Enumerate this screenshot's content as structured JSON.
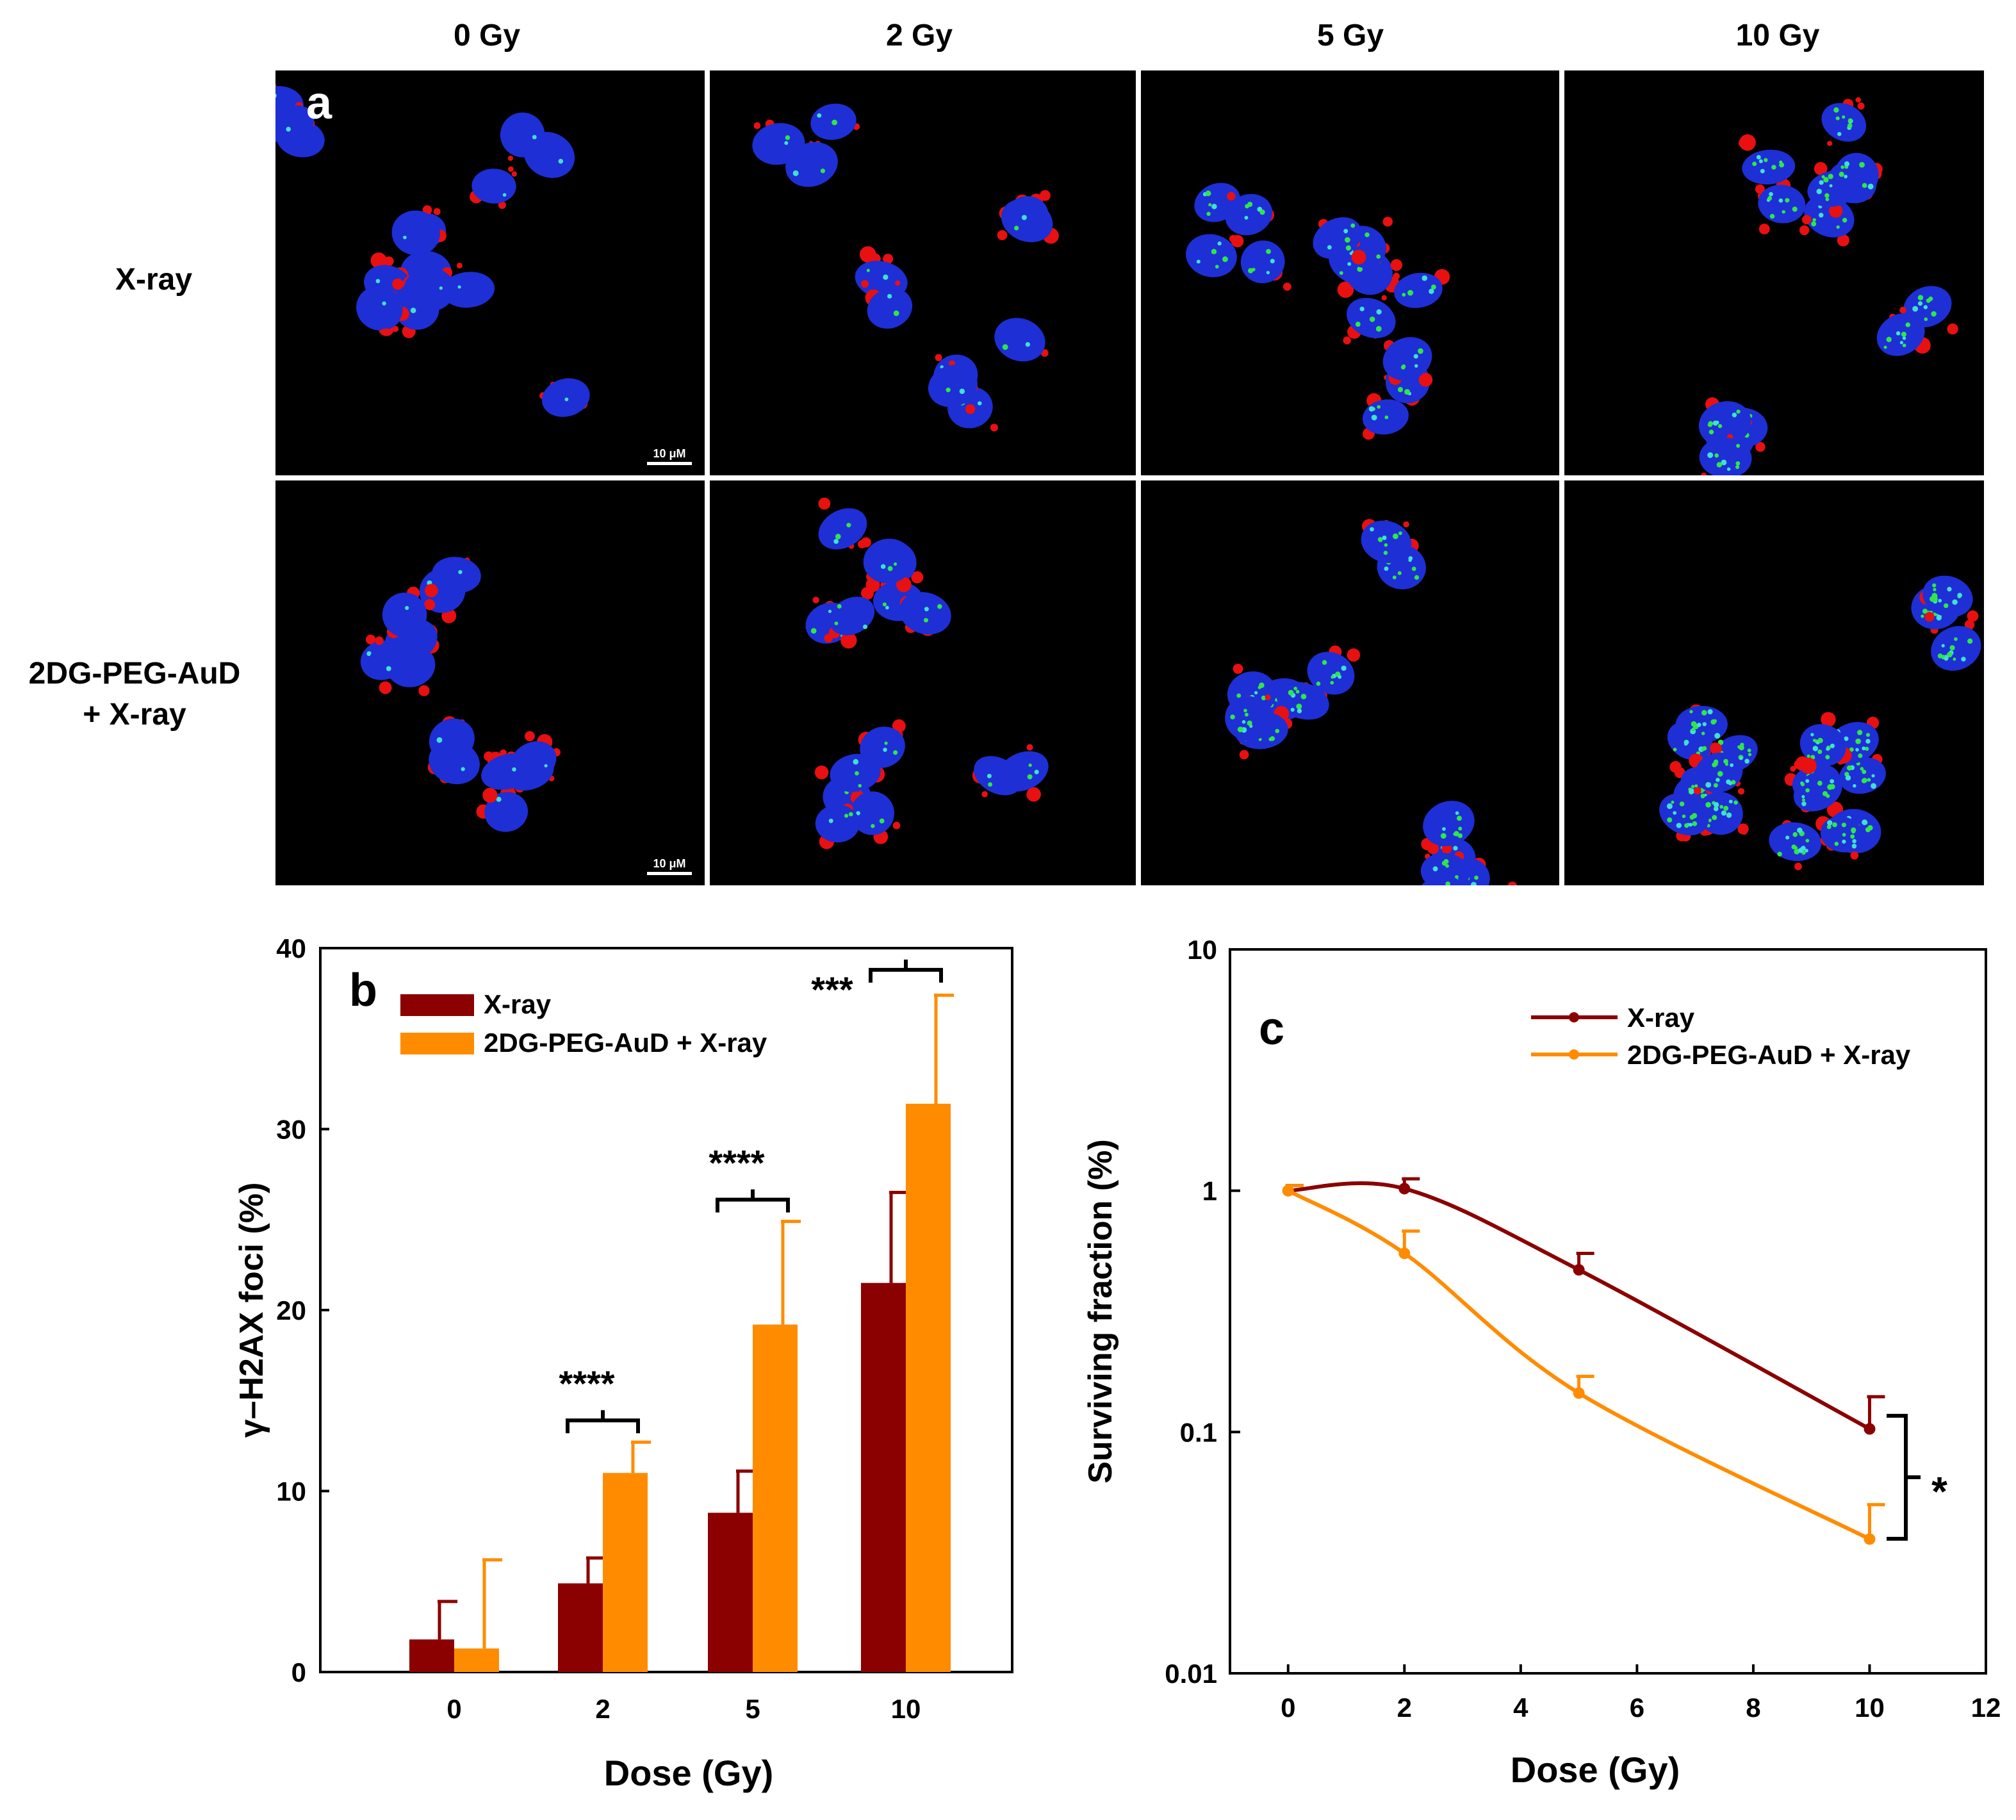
{
  "panel_a": {
    "letter": "a",
    "columns": [
      "0 Gy",
      "2 Gy",
      "5 Gy",
      "10 Gy"
    ],
    "rows": [
      {
        "line1": "X-ray",
        "line2": ""
      },
      {
        "line1": "2DG-PEG-AuD",
        "line2": "+ X-ray"
      }
    ],
    "scale_bar": "10 μM"
  },
  "colors": {
    "xray": "#8b0000",
    "combo": "#ff8c00",
    "nucleus": "#1e2fd6",
    "stain": "#e81010",
    "foci": "#2ee64a"
  },
  "chart_data": [
    {
      "id": "b",
      "type": "bar",
      "letter": "b",
      "categories": [
        "0",
        "2",
        "5",
        "10"
      ],
      "series": [
        {
          "name": "X-ray",
          "values": [
            1.8,
            4.9,
            8.8,
            21.5
          ],
          "errors": [
            2.1,
            1.4,
            2.3,
            5.0
          ]
        },
        {
          "name": "2DG-PEG-AuD + X-ray",
          "values": [
            1.3,
            11.0,
            19.2,
            31.4
          ],
          "errors": [
            4.9,
            1.7,
            5.7,
            6.0
          ]
        }
      ],
      "xlabel": "Dose (Gy)",
      "ylabel": "γ–H2AX foci (%)",
      "ylim": [
        0,
        40
      ],
      "yticks": [
        0,
        10,
        20,
        30,
        40
      ],
      "legend": "top-left",
      "significance": [
        "",
        "****",
        "****",
        "***"
      ]
    },
    {
      "id": "c",
      "type": "line",
      "letter": "c",
      "yscale": "log",
      "series": [
        {
          "name": "X-ray",
          "x": [
            0,
            2,
            5,
            10
          ],
          "y": [
            1.0,
            1.02,
            0.47,
            0.103
          ],
          "yerr_upper": [
            1.05,
            1.12,
            0.55,
            0.14
          ]
        },
        {
          "name": "2DG-PEG-AuD + X-ray",
          "x": [
            0,
            2,
            5,
            10
          ],
          "y": [
            1.0,
            0.55,
            0.145,
            0.036
          ],
          "yerr_upper": [
            1.05,
            0.68,
            0.17,
            0.05
          ]
        }
      ],
      "xlabel": "Dose (Gy)",
      "ylabel": "Surviving fraction (%)",
      "xlim": [
        -1,
        12
      ],
      "xticks": [
        0,
        2,
        4,
        6,
        8,
        10,
        12
      ],
      "ylim": [
        0.01,
        10
      ],
      "yticks": [
        0.01,
        0.1,
        1,
        10
      ],
      "ytick_labels": [
        "0.01",
        "0.1",
        "1",
        "10"
      ],
      "legend": "top-right",
      "significance": "*"
    }
  ]
}
